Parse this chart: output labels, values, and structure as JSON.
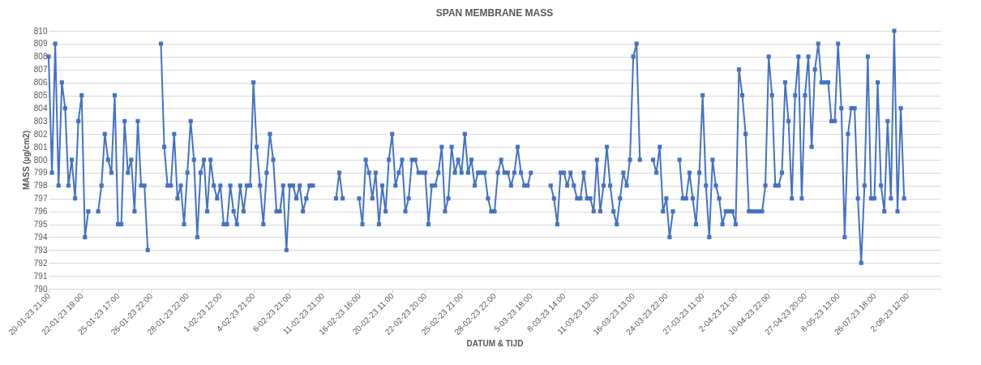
{
  "chart_data": {
    "type": "line",
    "title": "SPAN MEMBRANE MASS",
    "xlabel": "DATUM & TIJD",
    "ylabel": "MASS (µg/cm2)",
    "categories": [
      "20-01-23 21:00",
      null,
      null,
      null,
      null,
      null,
      null,
      null,
      null,
      null,
      "22-01-23 19:00",
      null,
      null,
      null,
      null,
      null,
      null,
      null,
      null,
      null,
      null,
      "25-01-23 17:00",
      null,
      null,
      null,
      null,
      null,
      null,
      null,
      null,
      null,
      "26-01-23 22:00",
      null,
      null,
      null,
      null,
      null,
      null,
      null,
      null,
      null,
      null,
      "28-01-23 22:00",
      null,
      null,
      null,
      null,
      null,
      null,
      null,
      null,
      null,
      "1-02-23 12:00",
      null,
      null,
      null,
      null,
      null,
      null,
      null,
      null,
      null,
      "4-02-23 21:00",
      null,
      null,
      null,
      null,
      null,
      null,
      null,
      null,
      null,
      null,
      "6-02-23 21:00",
      null,
      null,
      null,
      null,
      null,
      null,
      null,
      null,
      null,
      "11-02-23 21:00",
      null,
      null,
      null,
      null,
      null,
      null,
      null,
      null,
      null,
      null,
      "16-02-23 16:00",
      null,
      null,
      null,
      null,
      null,
      null,
      null,
      null,
      null,
      "20-02-23 11:00",
      null,
      null,
      null,
      null,
      null,
      null,
      null,
      null,
      null,
      "22-02-23 20:00",
      null,
      null,
      null,
      null,
      null,
      null,
      null,
      null,
      null,
      null,
      "25-02-23 21:00",
      null,
      null,
      null,
      null,
      null,
      null,
      null,
      null,
      null,
      "28-02-23 22:00",
      null,
      null,
      null,
      null,
      null,
      null,
      null,
      null,
      null,
      null,
      "5-03-23 18:00",
      null,
      null,
      null,
      null,
      null,
      null,
      null,
      null,
      null,
      "8-03-23 14:00",
      null,
      null,
      null,
      null,
      null,
      null,
      null,
      null,
      null,
      "11-03-23 13:00",
      null,
      null,
      null,
      null,
      null,
      null,
      null,
      null,
      null,
      null,
      "16-03-23 13:00",
      null,
      null,
      null,
      null,
      null,
      null,
      null,
      null,
      null,
      "24-03-23 22:00",
      null,
      null,
      null,
      null,
      null,
      null,
      null,
      null,
      null,
      null,
      "27-03-23 11:00",
      null,
      null,
      null,
      null,
      null,
      null,
      null,
      null,
      null,
      "2-04-23 21:00",
      null,
      null,
      null,
      null,
      null,
      null,
      null,
      null,
      null,
      "10-04-23 22:00",
      null,
      null,
      null,
      null,
      null,
      null,
      null,
      null,
      null,
      null,
      "27-04-23 20:00",
      null,
      null,
      null,
      null,
      null,
      null,
      null,
      null,
      null,
      "8-05-23 13:00",
      null,
      null,
      null,
      null,
      null,
      null,
      null,
      null,
      null,
      null,
      "26-07-23 18:00",
      null,
      null,
      null,
      null,
      null,
      null,
      null,
      null,
      null,
      "2-08-23 12:00",
      null,
      null,
      null,
      null,
      null,
      null,
      null,
      null,
      null,
      null
    ],
    "values": [
      808,
      799,
      809,
      798,
      806,
      804,
      798,
      800,
      797,
      803,
      805,
      794,
      796,
      null,
      null,
      796,
      798,
      802,
      800,
      799,
      805,
      795,
      795,
      803,
      799,
      800,
      796,
      803,
      798,
      798,
      793,
      null,
      null,
      null,
      809,
      801,
      798,
      798,
      802,
      797,
      798,
      795,
      799,
      803,
      800,
      794,
      799,
      800,
      796,
      800,
      798,
      797,
      798,
      795,
      795,
      798,
      796,
      795,
      798,
      796,
      798,
      798,
      806,
      801,
      798,
      795,
      799,
      802,
      800,
      796,
      796,
      798,
      793,
      798,
      798,
      797,
      798,
      796,
      797,
      798,
      798,
      null,
      null,
      null,
      null,
      null,
      null,
      797,
      799,
      797,
      null,
      null,
      null,
      null,
      797,
      795,
      800,
      799,
      797,
      799,
      795,
      798,
      796,
      800,
      802,
      798,
      799,
      800,
      796,
      797,
      800,
      800,
      799,
      799,
      799,
      795,
      798,
      798,
      799,
      801,
      796,
      797,
      801,
      799,
      800,
      799,
      802,
      799,
      800,
      798,
      799,
      799,
      799,
      797,
      796,
      796,
      799,
      800,
      799,
      799,
      798,
      799,
      801,
      799,
      798,
      798,
      799,
      null,
      null,
      null,
      null,
      null,
      798,
      797,
      795,
      799,
      799,
      798,
      799,
      798,
      797,
      797,
      799,
      797,
      797,
      796,
      800,
      796,
      798,
      801,
      798,
      796,
      795,
      797,
      799,
      798,
      800,
      808,
      809,
      800,
      null,
      null,
      null,
      800,
      799,
      801,
      796,
      797,
      794,
      796,
      null,
      800,
      797,
      797,
      799,
      797,
      795,
      799,
      805,
      798,
      794,
      800,
      798,
      797,
      795,
      796,
      796,
      796,
      795,
      807,
      805,
      802,
      796,
      796,
      796,
      796,
      796,
      798,
      808,
      805,
      798,
      798,
      799,
      806,
      803,
      797,
      805,
      808,
      797,
      805,
      808,
      801,
      807,
      809,
      806,
      806,
      806,
      803,
      803,
      809,
      804,
      794,
      802,
      804,
      804,
      797,
      792,
      798,
      808,
      797,
      797,
      806,
      798,
      796,
      803,
      797,
      810,
      796,
      804,
      797,
      null,
      null,
      null,
      null,
      null,
      null,
      null,
      null,
      null,
      null,
      null
    ],
    "color": "#4472c4",
    "marker": "square",
    "grid": "y",
    "ylim": [
      790,
      810
    ],
    "yticks": [
      790,
      791,
      792,
      793,
      794,
      795,
      796,
      797,
      798,
      799,
      800,
      801,
      802,
      803,
      804,
      805,
      806,
      807,
      808,
      809,
      810
    ]
  }
}
